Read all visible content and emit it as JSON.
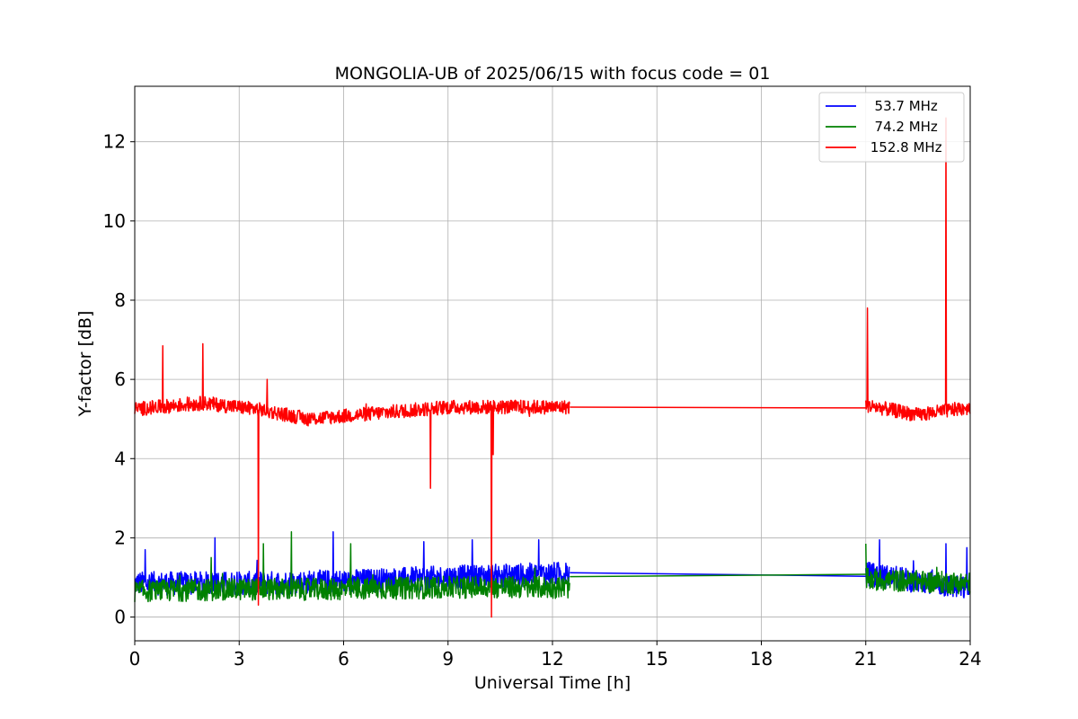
{
  "chart_data": {
    "type": "line",
    "title": "MONGOLIA-UB of 2025/06/15 with focus code = 01",
    "xlabel": "Universal Time [h]",
    "ylabel": "Y-factor [dB]",
    "xlim": [
      0,
      24
    ],
    "ylim": [
      -0.6,
      13.4
    ],
    "xticks": [
      0,
      3,
      6,
      9,
      12,
      15,
      18,
      21,
      24
    ],
    "yticks": [
      0,
      2,
      4,
      6,
      8,
      10,
      12
    ],
    "grid": true,
    "legend_position": "top-right",
    "series": [
      {
        "name": "53.7 MHz",
        "legend_label": "  53.7 MHz",
        "color": "#0000ff",
        "segments": [
          {
            "x_start": 0,
            "x_end": 12.5,
            "mean": [
              [
                0,
                0.85
              ],
              [
                3,
                0.85
              ],
              [
                6,
                0.9
              ],
              [
                9,
                1.0
              ],
              [
                12.5,
                1.1
              ]
            ],
            "noise": 0.3
          },
          {
            "x_start": 21,
            "x_end": 24,
            "mean": [
              [
                21,
                1.1
              ],
              [
                24,
                0.7
              ]
            ],
            "noise": 0.3
          }
        ],
        "gap_line": [
          [
            12.5,
            1.12
          ],
          [
            21,
            1.03
          ]
        ],
        "spikes": [
          [
            0.3,
            1.7
          ],
          [
            2.3,
            2.0
          ],
          [
            5.7,
            2.15
          ],
          [
            8.3,
            1.9
          ],
          [
            9.7,
            1.95
          ],
          [
            11.6,
            1.95
          ],
          [
            21.4,
            1.95
          ],
          [
            23.3,
            1.85
          ],
          [
            23.9,
            1.75
          ]
        ]
      },
      {
        "name": "74.2 MHz",
        "legend_label": "  74.2 MHz",
        "color": "#008000",
        "segments": [
          {
            "x_start": 0,
            "x_end": 12.5,
            "mean": [
              [
                0,
                0.65
              ],
              [
                3,
                0.7
              ],
              [
                6,
                0.7
              ],
              [
                9,
                0.75
              ],
              [
                12.5,
                0.75
              ]
            ],
            "noise": 0.28
          },
          {
            "x_start": 21,
            "x_end": 24,
            "mean": [
              [
                21,
                0.95
              ],
              [
                24,
                0.85
              ]
            ],
            "noise": 0.28
          }
        ],
        "gap_line": [
          [
            12.5,
            1.02
          ],
          [
            21,
            1.08
          ]
        ],
        "spikes": [
          [
            2.2,
            1.5
          ],
          [
            3.7,
            1.85
          ],
          [
            4.5,
            2.15
          ],
          [
            6.2,
            1.85
          ],
          [
            21,
            1.85
          ]
        ]
      },
      {
        "name": "152.8 MHz",
        "legend_label": " 152.8 MHz",
        "color": "#ff0000",
        "segments": [
          {
            "x_start": 0,
            "x_end": 12.5,
            "mean": [
              [
                0,
                5.25
              ],
              [
                2,
                5.4
              ],
              [
                3.5,
                5.25
              ],
              [
                5,
                5.0
              ],
              [
                7,
                5.15
              ],
              [
                9,
                5.3
              ],
              [
                12.5,
                5.3
              ]
            ],
            "noise": 0.18
          },
          {
            "x_start": 21,
            "x_end": 24,
            "mean": [
              [
                21,
                5.35
              ],
              [
                22.5,
                5.1
              ],
              [
                24,
                5.3
              ]
            ],
            "noise": 0.18
          }
        ],
        "gap_line": [
          [
            12.5,
            5.3
          ],
          [
            21,
            5.28
          ]
        ],
        "spikes": [
          [
            0.8,
            6.85
          ],
          [
            1.95,
            6.9
          ],
          [
            3.8,
            6.0
          ],
          [
            21.05,
            7.8
          ],
          [
            23.3,
            12.6
          ]
        ],
        "dips": [
          [
            3.55,
            0.3
          ],
          [
            8.5,
            3.25
          ],
          [
            10.25,
            0.0
          ],
          [
            10.3,
            4.1
          ]
        ]
      }
    ]
  }
}
